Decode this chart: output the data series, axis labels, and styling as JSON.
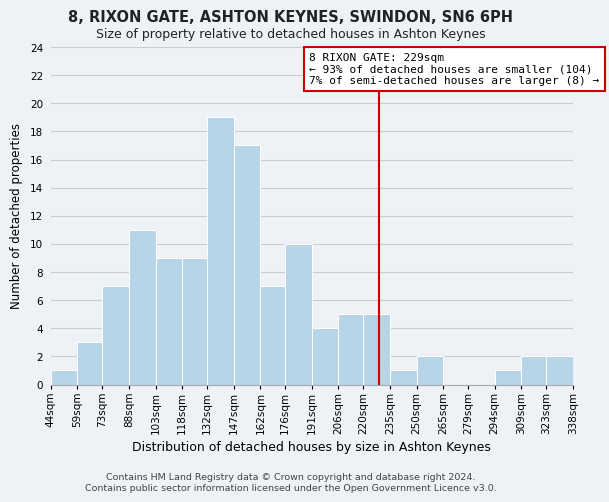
{
  "title": "8, RIXON GATE, ASHTON KEYNES, SWINDON, SN6 6PH",
  "subtitle": "Size of property relative to detached houses in Ashton Keynes",
  "xlabel": "Distribution of detached houses by size in Ashton Keynes",
  "ylabel": "Number of detached properties",
  "bin_edges": [
    44,
    59,
    73,
    88,
    103,
    118,
    132,
    147,
    162,
    176,
    191,
    206,
    220,
    235,
    250,
    265,
    279,
    294,
    309,
    323,
    338
  ],
  "bin_labels": [
    "44sqm",
    "59sqm",
    "73sqm",
    "88sqm",
    "103sqm",
    "118sqm",
    "132sqm",
    "147sqm",
    "162sqm",
    "176sqm",
    "191sqm",
    "206sqm",
    "220sqm",
    "235sqm",
    "250sqm",
    "265sqm",
    "279sqm",
    "294sqm",
    "309sqm",
    "323sqm",
    "338sqm"
  ],
  "counts": [
    1,
    3,
    7,
    11,
    9,
    9,
    19,
    17,
    7,
    10,
    4,
    5,
    5,
    1,
    2,
    0,
    0,
    1,
    2,
    2
  ],
  "bar_color": "#b8d4e8",
  "bar_edge_color": "#ffffff",
  "grid_color": "#cccccc",
  "background_color": "#eef2f7",
  "vline_x": 229,
  "vline_color": "#cc0000",
  "annotation_line1": "8 RIXON GATE: 229sqm",
  "annotation_line2": "← 93% of detached houses are smaller (104)",
  "annotation_line3": "7% of semi-detached houses are larger (8) →",
  "annotation_box_color": "#ffffff",
  "annotation_box_edge_color": "#cc0000",
  "ylim": [
    0,
    24
  ],
  "yticks": [
    0,
    2,
    4,
    6,
    8,
    10,
    12,
    14,
    16,
    18,
    20,
    22,
    24
  ],
  "footer_text": "Contains HM Land Registry data © Crown copyright and database right 2024.\nContains public sector information licensed under the Open Government Licence v3.0.",
  "title_fontsize": 10.5,
  "subtitle_fontsize": 9,
  "xlabel_fontsize": 9,
  "ylabel_fontsize": 8.5,
  "tick_fontsize": 7.5,
  "annotation_fontsize": 8,
  "footer_fontsize": 6.8
}
